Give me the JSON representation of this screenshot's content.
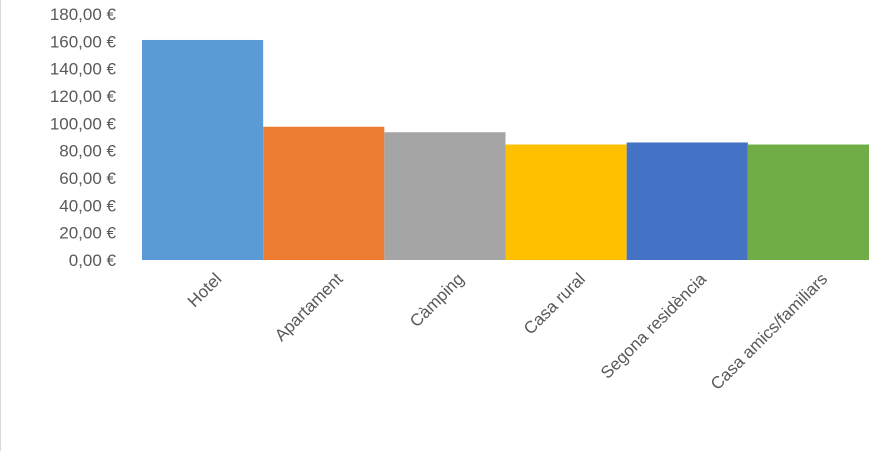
{
  "chart_data": {
    "type": "bar",
    "title": "",
    "xlabel": "",
    "ylabel": "",
    "ylim": [
      0,
      180
    ],
    "yticks": [
      0,
      20,
      40,
      60,
      80,
      100,
      120,
      140,
      160,
      180
    ],
    "ytick_labels": [
      "0,00 €",
      "20,00 €",
      "40,00 €",
      "60,00 €",
      "80,00 €",
      "100,00 €",
      "120,00 €",
      "140,00 €",
      "160,00 €",
      "180,00 €"
    ],
    "categories": [
      "Hotel",
      "Apartament",
      "Càmping",
      "Casa rural",
      "Segona residència",
      "Casa amics/familiars"
    ],
    "values": [
      161,
      97.5,
      93.5,
      84.5,
      86,
      84.5
    ],
    "colors": [
      "#5B9BD5",
      "#ED7D31",
      "#A5A5A5",
      "#FFC000",
      "#4472C4",
      "#70AD47"
    ],
    "grid": false,
    "legend": "none"
  }
}
